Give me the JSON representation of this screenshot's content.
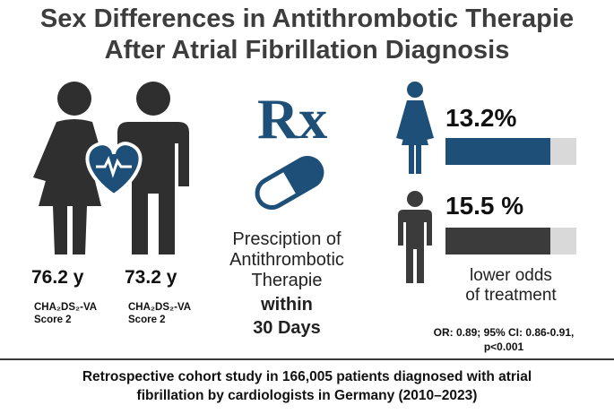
{
  "title": {
    "line1": "Sex Differences in Antithrombotic Therapie",
    "line2": "After Atrial Fibrillation Diagnosis"
  },
  "left": {
    "female": {
      "age": "76.2 y",
      "score_line1": "CHA₂DS₂-VA",
      "score_line2": "Score 2"
    },
    "male": {
      "age": "73.2 y",
      "score_line1": "CHA₂DS₂-VA",
      "score_line2": "Score 2"
    }
  },
  "center": {
    "rx_symbol": "Rx",
    "line1": "Presciption of",
    "line2": "Antithrombotic",
    "line3": "Therapie",
    "line4": "within",
    "line5": "30 Days"
  },
  "right": {
    "female_pct": "13.2%",
    "male_pct": "15.5 %",
    "female_fill": 0.8,
    "male_fill": 0.8,
    "odds_line1": "lower odds",
    "odds_line2": "of treatment",
    "stats_line1": "OR: 0.89; 95% CI: 0.86-0.91,",
    "stats_line2": "p<0.001"
  },
  "footer": {
    "line1": "Retrospective cohort study in 166,005 patients diagnosed with atrial",
    "line2": "fibrillation by cardiologists in Germany (2010–2023)"
  },
  "colors": {
    "female": "#1d4f79",
    "male": "#3b3b3b",
    "bar_bg": "#d9d9d9"
  },
  "icons": [
    "female-person-icon",
    "male-person-icon",
    "heart-pulse-icon",
    "pill-capsule-icon",
    "rx-symbol-icon"
  ]
}
